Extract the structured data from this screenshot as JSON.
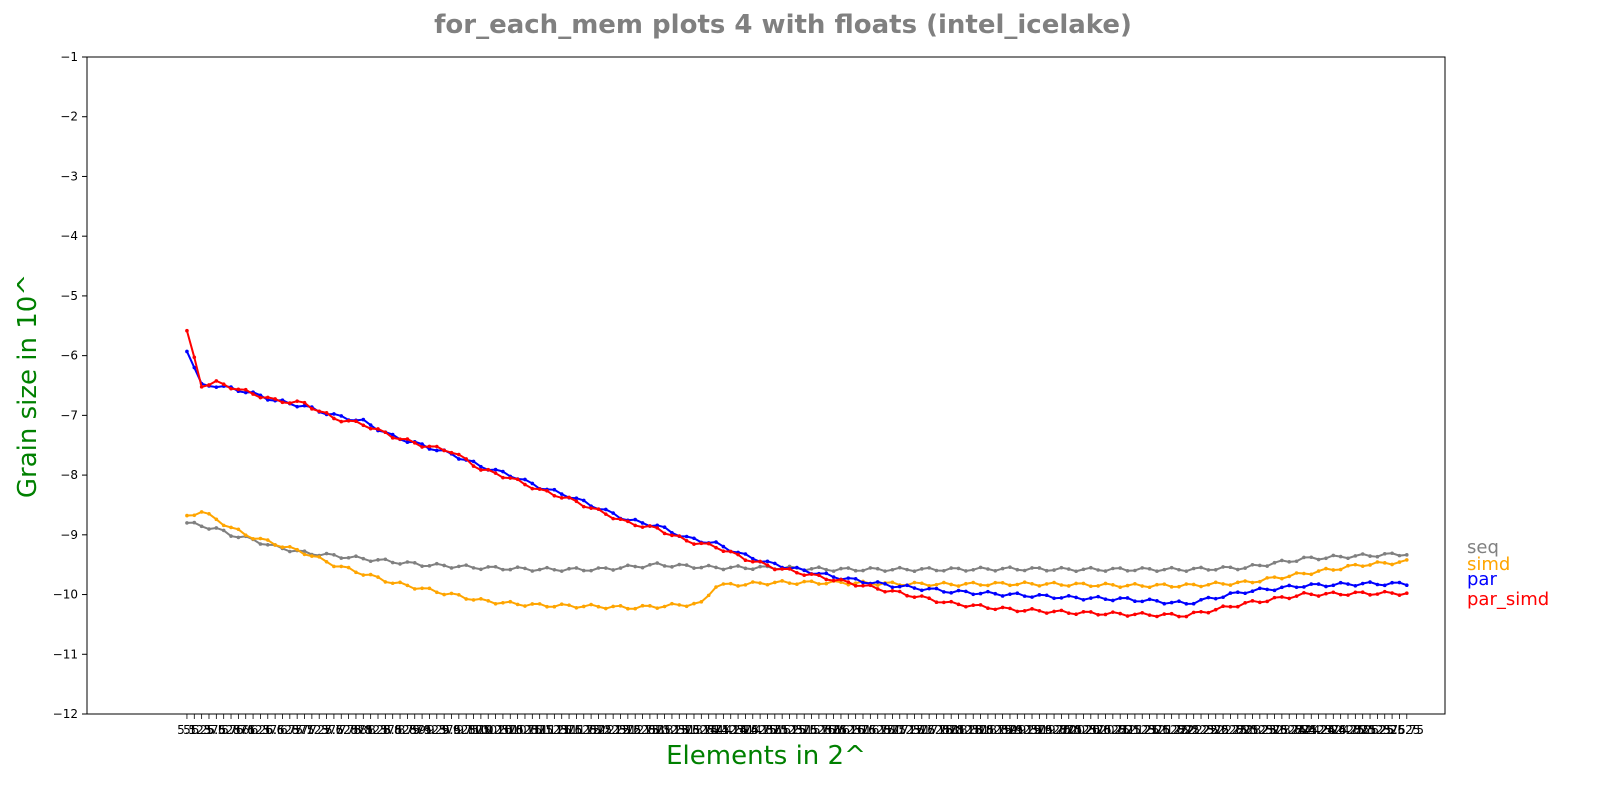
{
  "chart_data": {
    "type": "line",
    "title": "for_each_mem plots 4 with floats  (intel_icelake)",
    "xlabel": "Elements in 2^",
    "ylabel": "Grain size in 10^",
    "ylim": [
      -12,
      -1
    ],
    "yticks": [
      -1,
      -2,
      -3,
      -4,
      -5,
      -6,
      -7,
      -8,
      -9,
      -10,
      -11,
      -12
    ],
    "xlim": [
      3.3,
      26.4
    ],
    "x_start": 5.0,
    "x_end": 25.75,
    "x_step": 0.125,
    "grid": false,
    "legend_placement": "right, outside plot at line ends",
    "series": [
      {
        "name": "seq",
        "color": "#808080",
        "points": [
          [
            5.0,
            -8.8
          ],
          [
            5.25,
            -8.85
          ],
          [
            5.5,
            -8.9
          ],
          [
            5.75,
            -9.0
          ],
          [
            6.0,
            -9.05
          ],
          [
            6.5,
            -9.2
          ],
          [
            7.0,
            -9.3
          ],
          [
            7.5,
            -9.35
          ],
          [
            8.0,
            -9.4
          ],
          [
            8.5,
            -9.45
          ],
          [
            9.0,
            -9.5
          ],
          [
            10.0,
            -9.55
          ],
          [
            11.0,
            -9.58
          ],
          [
            12.0,
            -9.58
          ],
          [
            13.0,
            -9.5
          ],
          [
            14.0,
            -9.55
          ],
          [
            15.0,
            -9.55
          ],
          [
            16.0,
            -9.58
          ],
          [
            17.0,
            -9.58
          ],
          [
            18.0,
            -9.58
          ],
          [
            19.0,
            -9.57
          ],
          [
            20.0,
            -9.58
          ],
          [
            21.0,
            -9.58
          ],
          [
            22.0,
            -9.58
          ],
          [
            23.0,
            -9.55
          ],
          [
            24.0,
            -9.4
          ],
          [
            25.0,
            -9.35
          ],
          [
            25.75,
            -9.32
          ]
        ]
      },
      {
        "name": "simd",
        "color": "#ffa500",
        "points": [
          [
            5.0,
            -8.7
          ],
          [
            5.25,
            -8.6
          ],
          [
            5.5,
            -8.75
          ],
          [
            6.0,
            -9.0
          ],
          [
            6.5,
            -9.15
          ],
          [
            7.0,
            -9.3
          ],
          [
            7.5,
            -9.5
          ],
          [
            8.0,
            -9.65
          ],
          [
            8.5,
            -9.8
          ],
          [
            9.0,
            -9.9
          ],
          [
            9.5,
            -10.0
          ],
          [
            10.0,
            -10.1
          ],
          [
            10.5,
            -10.15
          ],
          [
            11.0,
            -10.18
          ],
          [
            12.0,
            -10.2
          ],
          [
            12.5,
            -10.22
          ],
          [
            13.0,
            -10.2
          ],
          [
            13.75,
            -10.15
          ],
          [
            14.0,
            -9.85
          ],
          [
            15.0,
            -9.8
          ],
          [
            16.0,
            -9.8
          ],
          [
            17.0,
            -9.82
          ],
          [
            18.0,
            -9.83
          ],
          [
            19.0,
            -9.82
          ],
          [
            20.0,
            -9.83
          ],
          [
            21.0,
            -9.85
          ],
          [
            22.0,
            -9.85
          ],
          [
            23.0,
            -9.8
          ],
          [
            24.0,
            -9.65
          ],
          [
            25.0,
            -9.5
          ],
          [
            25.75,
            -9.45
          ]
        ]
      },
      {
        "name": "par",
        "color": "#0000ff",
        "points": [
          [
            5.0,
            -5.9
          ],
          [
            5.25,
            -6.5
          ],
          [
            5.5,
            -6.5
          ],
          [
            6.0,
            -6.6
          ],
          [
            6.5,
            -6.75
          ],
          [
            7.0,
            -6.85
          ],
          [
            7.5,
            -7.0
          ],
          [
            8.0,
            -7.1
          ],
          [
            8.5,
            -7.35
          ],
          [
            9.0,
            -7.5
          ],
          [
            9.5,
            -7.65
          ],
          [
            10.0,
            -7.85
          ],
          [
            10.5,
            -8.0
          ],
          [
            11.0,
            -8.2
          ],
          [
            11.5,
            -8.35
          ],
          [
            12.0,
            -8.55
          ],
          [
            12.5,
            -8.75
          ],
          [
            13.0,
            -8.85
          ],
          [
            13.5,
            -9.05
          ],
          [
            14.0,
            -9.15
          ],
          [
            14.5,
            -9.35
          ],
          [
            15.0,
            -9.5
          ],
          [
            15.5,
            -9.6
          ],
          [
            16.0,
            -9.7
          ],
          [
            16.5,
            -9.78
          ],
          [
            17.0,
            -9.85
          ],
          [
            17.5,
            -9.9
          ],
          [
            18.0,
            -9.95
          ],
          [
            19.0,
            -10.0
          ],
          [
            20.0,
            -10.05
          ],
          [
            21.0,
            -10.08
          ],
          [
            22.0,
            -10.15
          ],
          [
            23.0,
            -9.95
          ],
          [
            24.0,
            -9.85
          ],
          [
            25.0,
            -9.82
          ],
          [
            25.75,
            -9.82
          ]
        ]
      },
      {
        "name": "par_simd",
        "color": "#ff0000",
        "points": [
          [
            5.0,
            -5.6
          ],
          [
            5.25,
            -6.5
          ],
          [
            5.5,
            -6.45
          ],
          [
            6.0,
            -6.6
          ],
          [
            6.5,
            -6.75
          ],
          [
            7.0,
            -6.8
          ],
          [
            7.5,
            -7.05
          ],
          [
            8.0,
            -7.15
          ],
          [
            8.5,
            -7.35
          ],
          [
            9.0,
            -7.5
          ],
          [
            9.5,
            -7.6
          ],
          [
            10.0,
            -7.9
          ],
          [
            10.5,
            -8.05
          ],
          [
            11.0,
            -8.25
          ],
          [
            11.5,
            -8.4
          ],
          [
            12.0,
            -8.6
          ],
          [
            12.5,
            -8.8
          ],
          [
            13.0,
            -8.9
          ],
          [
            13.5,
            -9.1
          ],
          [
            14.0,
            -9.2
          ],
          [
            14.5,
            -9.4
          ],
          [
            15.0,
            -9.55
          ],
          [
            15.5,
            -9.65
          ],
          [
            16.0,
            -9.75
          ],
          [
            16.5,
            -9.85
          ],
          [
            17.0,
            -9.95
          ],
          [
            17.5,
            -10.05
          ],
          [
            18.0,
            -10.15
          ],
          [
            19.0,
            -10.25
          ],
          [
            20.0,
            -10.3
          ],
          [
            21.0,
            -10.33
          ],
          [
            22.0,
            -10.35
          ],
          [
            23.0,
            -10.15
          ],
          [
            24.0,
            -10.0
          ],
          [
            25.0,
            -9.98
          ],
          [
            25.75,
            -9.98
          ]
        ]
      }
    ]
  }
}
